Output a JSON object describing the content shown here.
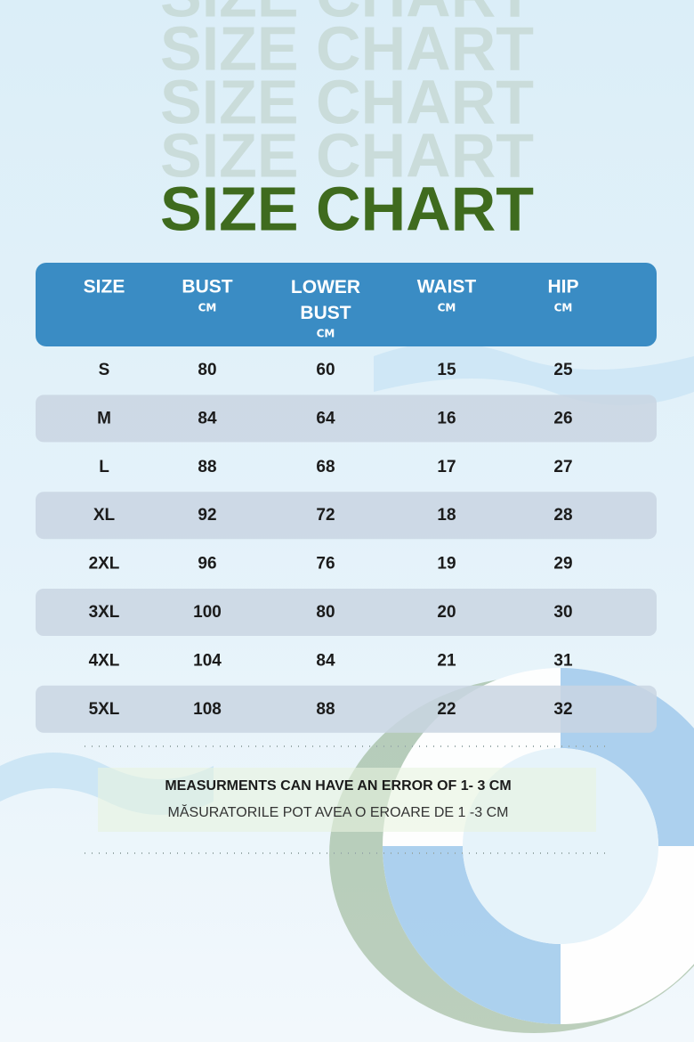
{
  "header": {
    "title": "SIZE CHART"
  },
  "table": {
    "columns": [
      {
        "label": "SIZE"
      },
      {
        "label": "BUST",
        "unit": "CM"
      },
      {
        "label": "LOWER BUST",
        "unit": "CM"
      },
      {
        "label": "WAIST",
        "unit": "CM"
      },
      {
        "label": "HIP",
        "unit": "CM"
      }
    ],
    "rows": [
      [
        "S",
        80,
        60,
        15,
        25
      ],
      [
        "M",
        84,
        64,
        16,
        26
      ],
      [
        "L",
        88,
        68,
        17,
        27
      ],
      [
        "XL",
        92,
        72,
        18,
        28
      ],
      [
        "2XL",
        96,
        76,
        19,
        29
      ],
      [
        "3XL",
        100,
        80,
        20,
        30
      ],
      [
        "4XL",
        104,
        84,
        21,
        31
      ],
      [
        "5XL",
        108,
        88,
        22,
        32
      ]
    ]
  },
  "notes": [
    "MEASURMENTS CAN HAVE AN ERROR OF 1- 3 CM",
    "MĂSURATORILE POT AVEA O EROARE DE 1 -3 CM"
  ]
}
